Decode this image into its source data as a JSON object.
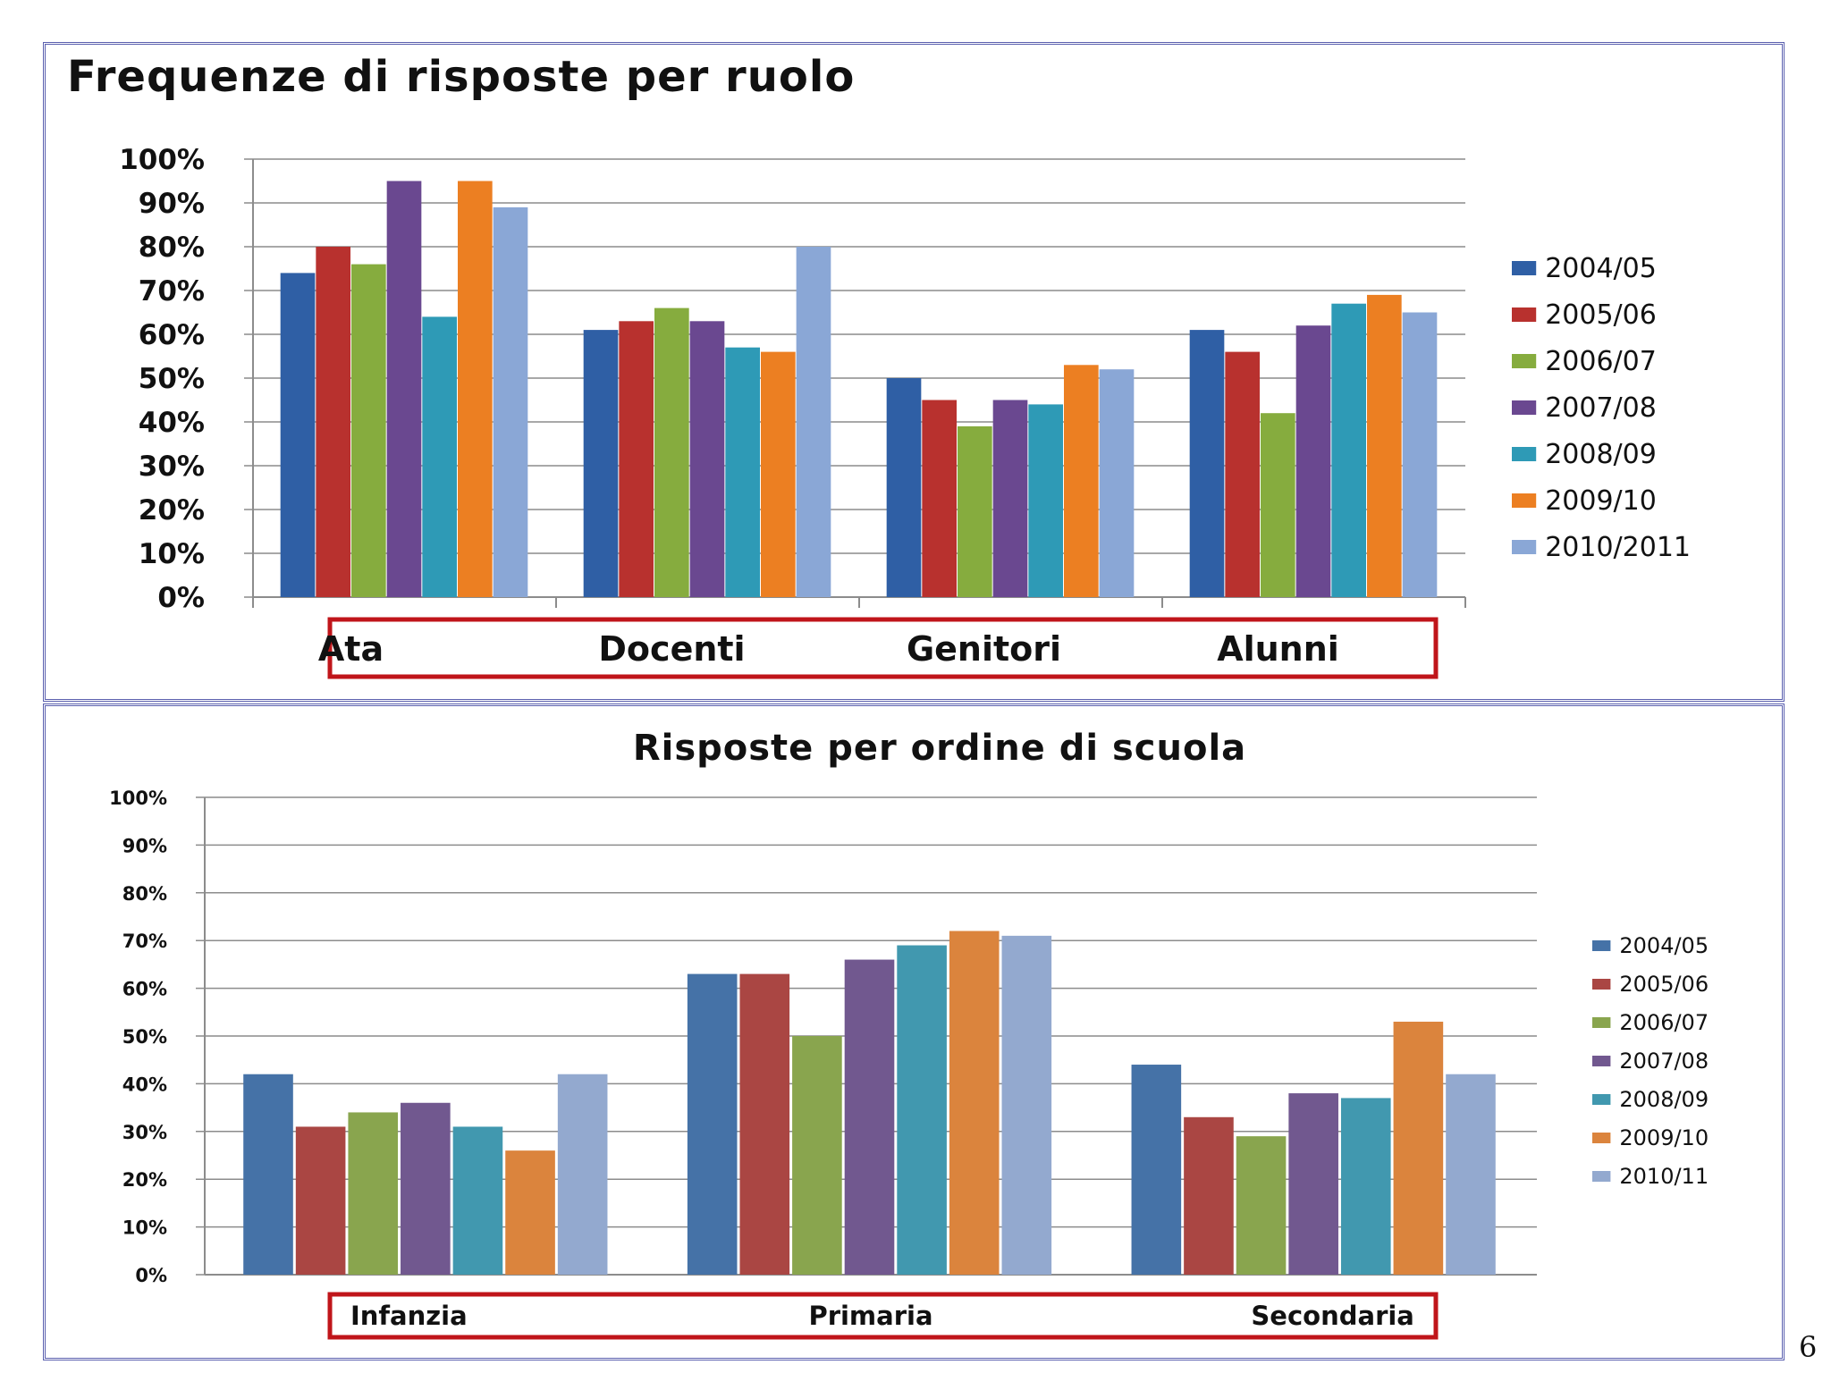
{
  "page_number": "6",
  "chart_data": [
    {
      "type": "bar",
      "title": "Frequenze di risposte per ruolo",
      "categories": [
        "Ata",
        "Docenti",
        "Genitori",
        "Alunni"
      ],
      "yticks": [
        "0%",
        "10%",
        "20%",
        "30%",
        "40%",
        "50%",
        "60%",
        "70%",
        "80%",
        "90%",
        "100%"
      ],
      "ylim": [
        0,
        100
      ],
      "grid": true,
      "legend_position": "right",
      "series": [
        {
          "name": "2004/05",
          "color": "#2f5fa5",
          "values": [
            74,
            61,
            50,
            61
          ]
        },
        {
          "name": "2005/06",
          "color": "#b8312e",
          "values": [
            80,
            63,
            45,
            56
          ]
        },
        {
          "name": "2006/07",
          "color": "#86ac3e",
          "values": [
            76,
            66,
            39,
            42
          ]
        },
        {
          "name": "2007/08",
          "color": "#6a4890",
          "values": [
            95,
            63,
            45,
            62
          ]
        },
        {
          "name": "2008/09",
          "color": "#2e9ab6",
          "values": [
            64,
            57,
            44,
            67
          ]
        },
        {
          "name": "2009/10",
          "color": "#ec7f22",
          "values": [
            95,
            56,
            53,
            69
          ]
        },
        {
          "name": "2010/2011",
          "color": "#8aa7d6",
          "values": [
            89,
            80,
            52,
            65
          ]
        }
      ]
    },
    {
      "type": "bar",
      "title": "Risposte per ordine di scuola",
      "categories": [
        "Infanzia",
        "Primaria",
        "Secondaria"
      ],
      "yticks": [
        "0%",
        "10%",
        "20%",
        "30%",
        "40%",
        "50%",
        "60%",
        "70%",
        "80%",
        "90%",
        "100%"
      ],
      "ylim": [
        0,
        100
      ],
      "grid": true,
      "legend_position": "right",
      "series": [
        {
          "name": "2004/05",
          "color": "#4572a7",
          "values": [
            42,
            63,
            44
          ]
        },
        {
          "name": "2005/06",
          "color": "#aa4643",
          "values": [
            31,
            63,
            33
          ]
        },
        {
          "name": "2006/07",
          "color": "#89a54e",
          "values": [
            34,
            50,
            29
          ]
        },
        {
          "name": "2007/08",
          "color": "#71588f",
          "values": [
            36,
            66,
            38
          ]
        },
        {
          "name": "2008/09",
          "color": "#4198af",
          "values": [
            31,
            69,
            37
          ]
        },
        {
          "name": "2009/10",
          "color": "#db843d",
          "values": [
            26,
            72,
            53
          ]
        },
        {
          "name": "2010/11",
          "color": "#93a9cf",
          "values": [
            42,
            71,
            42
          ]
        }
      ]
    }
  ]
}
